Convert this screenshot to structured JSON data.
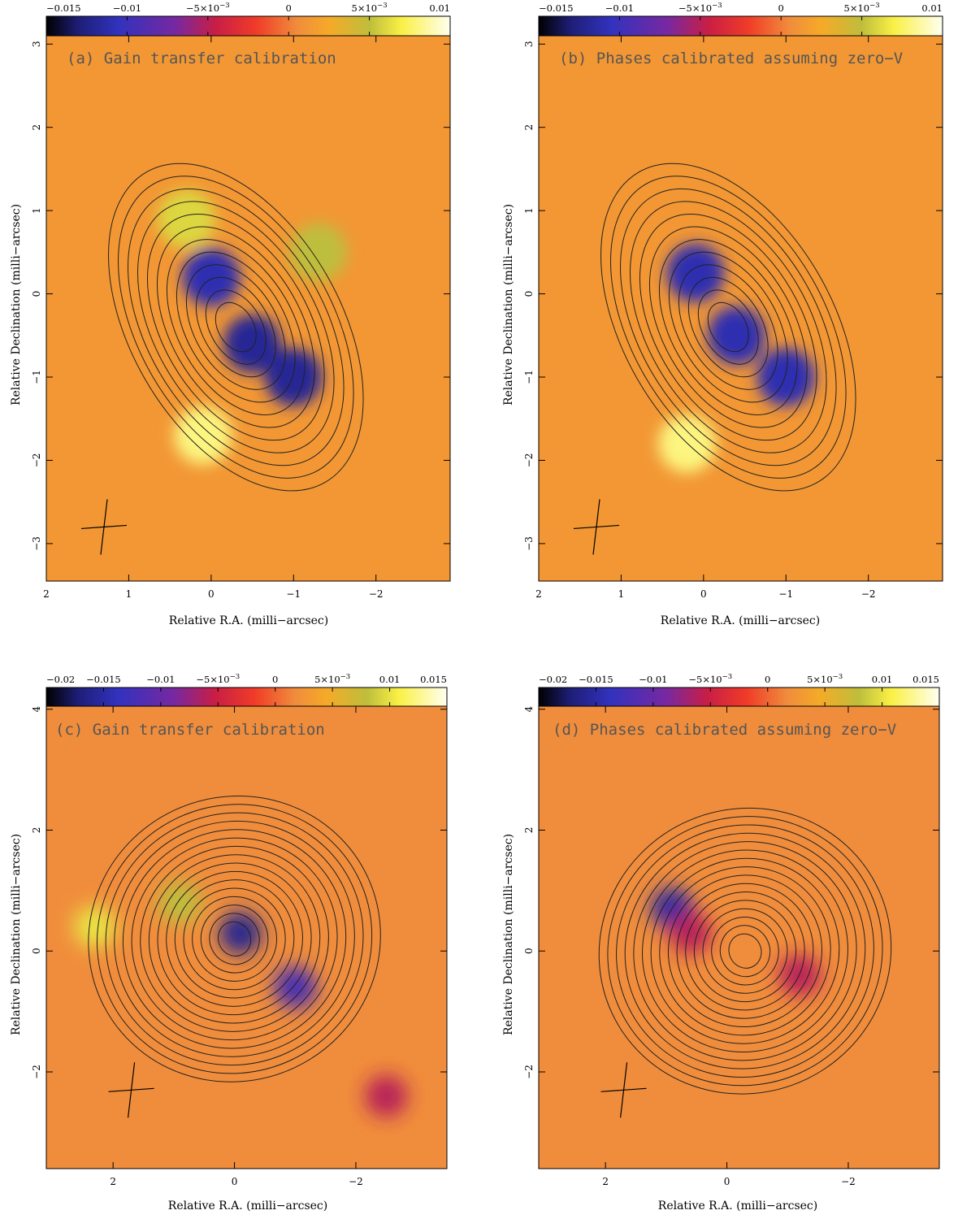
{
  "panels": [
    {
      "id": "a",
      "annotation": "(a) Gain transfer calibration",
      "colorbar": {
        "min": -0.015,
        "max": 0.01,
        "tick_values": [
          -0.015,
          -0.01,
          -0.005,
          0,
          0.005,
          0.01
        ],
        "tick_labels": [
          "−0.015",
          "−0.01",
          "−5×10",
          "0",
          "5×10",
          "0.01"
        ],
        "exponent_labels": [
          "",
          "",
          "−3",
          "",
          "−3",
          ""
        ]
      },
      "x_axis": {
        "label": "Relative R.A. (milli−arcsec)",
        "range": [
          2,
          -2.9
        ],
        "ticks": [
          2,
          1,
          0,
          -1,
          -2
        ],
        "tick_labels": [
          "2",
          "1",
          "0",
          "−1",
          "−2"
        ]
      },
      "y_axis": {
        "label": "Relative Declination (milli−arcsec)",
        "range": [
          -3.45,
          3.1
        ],
        "ticks": [
          3,
          2,
          1,
          0,
          -1,
          -2,
          -3
        ],
        "tick_labels": [
          "3",
          "2",
          "1",
          "0",
          "−1",
          "−2",
          "−3"
        ]
      },
      "beam": {
        "x": 1.3,
        "y": -2.8
      }
    },
    {
      "id": "b",
      "annotation": "(b) Phases calibrated assuming zero−V",
      "colorbar": {
        "min": -0.015,
        "max": 0.01,
        "tick_values": [
          -0.015,
          -0.01,
          -0.005,
          0,
          0.005,
          0.01
        ],
        "tick_labels": [
          "−0.015",
          "−0.01",
          "−5×10",
          "0",
          "5×10",
          "0.01"
        ],
        "exponent_labels": [
          "",
          "",
          "−3",
          "",
          "−3",
          ""
        ]
      },
      "x_axis": {
        "label": "Relative R.A. (milli−arcsec)",
        "range": [
          2,
          -2.9
        ],
        "ticks": [
          2,
          1,
          0,
          -1,
          -2
        ],
        "tick_labels": [
          "2",
          "1",
          "0",
          "−1",
          "−2"
        ]
      },
      "y_axis": {
        "label": "Relative Declination (milli−arcsec)",
        "range": [
          -3.45,
          3.1
        ],
        "ticks": [
          3,
          2,
          1,
          0,
          -1,
          -2,
          -3
        ],
        "tick_labels": [
          "3",
          "2",
          "1",
          "0",
          "−1",
          "−2",
          "−3"
        ]
      },
      "beam": {
        "x": 1.3,
        "y": -2.8
      }
    },
    {
      "id": "c",
      "annotation": "(c) Gain transfer calibration",
      "colorbar": {
        "min": -0.02,
        "max": 0.015,
        "tick_values": [
          -0.02,
          -0.015,
          -0.01,
          -0.005,
          0,
          0.005,
          0.01,
          0.015
        ],
        "tick_labels": [
          "−0.02",
          "−0.015",
          "−0.01",
          "−5×10",
          "0",
          "5×10",
          "0.01",
          "0.015"
        ],
        "exponent_labels": [
          "",
          "",
          "",
          "−3",
          "",
          "−3",
          "",
          ""
        ]
      },
      "x_axis": {
        "label": "Relative R.A. (milli−arcsec)",
        "range": [
          3.1,
          -3.5
        ],
        "ticks": [
          2,
          0,
          -2
        ],
        "tick_labels": [
          "2",
          "0",
          "−2"
        ]
      },
      "y_axis": {
        "label": "Relative Declination (milli−arcsec)",
        "range": [
          -3.6,
          4.05
        ],
        "ticks": [
          4,
          2,
          0,
          -2
        ],
        "tick_labels": [
          "4",
          "2",
          "0",
          "−2"
        ]
      },
      "beam": {
        "x": 1.7,
        "y": -2.3
      }
    },
    {
      "id": "d",
      "annotation": "(d) Phases calibrated assuming zero−V",
      "colorbar": {
        "min": -0.02,
        "max": 0.015,
        "tick_values": [
          -0.02,
          -0.015,
          -0.01,
          -0.005,
          0,
          0.005,
          0.01,
          0.015
        ],
        "tick_labels": [
          "−0.02",
          "−0.015",
          "−0.01",
          "−5×10",
          "0",
          "5×10",
          "0.01",
          "0.015"
        ],
        "exponent_labels": [
          "",
          "",
          "",
          "−3",
          "",
          "−3",
          "",
          ""
        ]
      },
      "x_axis": {
        "label": "Relative R.A. (milli−arcsec)",
        "range": [
          3.1,
          -3.5
        ],
        "ticks": [
          2,
          0,
          -2
        ],
        "tick_labels": [
          "2",
          "0",
          "−2"
        ]
      },
      "y_axis": {
        "label": "Relative Declination (milli−arcsec)",
        "range": [
          -3.6,
          4.05
        ],
        "ticks": [
          4,
          2,
          0,
          -2
        ],
        "tick_labels": [
          "4",
          "2",
          "0",
          "−2"
        ]
      },
      "beam": {
        "x": 1.7,
        "y": -2.3
      }
    }
  ],
  "chart_data": [
    {
      "type": "heatmap",
      "panel": "a",
      "title": "(a) Gain transfer calibration",
      "xlabel": "Relative R.A. (milli−arcsec)",
      "ylabel": "Relative Declination (milli−arcsec)",
      "xlim": [
        2,
        -2.9
      ],
      "ylim": [
        -3.45,
        3.1
      ],
      "colorbar_range": [
        -0.015,
        0.01
      ],
      "features": [
        {
          "x": 0.0,
          "y": 0.2,
          "value": -0.011
        },
        {
          "x": -0.5,
          "y": -0.6,
          "value": -0.012
        },
        {
          "x": -1.0,
          "y": -1.0,
          "value": -0.012
        },
        {
          "x": 0.3,
          "y": 0.9,
          "value": 0.006
        },
        {
          "x": 0.1,
          "y": -1.7,
          "value": 0.008
        },
        {
          "x": -1.3,
          "y": 0.5,
          "value": 0.005
        }
      ],
      "contours": [
        {
          "center": [
            -0.3,
            -0.4
          ],
          "levels": 12
        }
      ]
    },
    {
      "type": "heatmap",
      "panel": "b",
      "title": "(b) Phases calibrated assuming zero−V",
      "xlabel": "Relative R.A. (milli−arcsec)",
      "ylabel": "Relative Declination (milli−arcsec)",
      "xlim": [
        2,
        -2.9
      ],
      "ylim": [
        -3.45,
        3.1
      ],
      "colorbar_range": [
        -0.015,
        0.01
      ],
      "features": [
        {
          "x": 0.1,
          "y": 0.25,
          "value": -0.011
        },
        {
          "x": -0.4,
          "y": -0.5,
          "value": -0.011
        },
        {
          "x": -1.0,
          "y": -1.0,
          "value": -0.011
        },
        {
          "x": 0.2,
          "y": -1.8,
          "value": 0.008
        }
      ],
      "contours": [
        {
          "center": [
            -0.3,
            -0.4
          ],
          "levels": 12
        }
      ]
    },
    {
      "type": "heatmap",
      "panel": "c",
      "title": "(c) Gain transfer calibration",
      "xlabel": "Relative R.A. (milli−arcsec)",
      "ylabel": "Relative Declination (milli−arcsec)",
      "xlim": [
        3.1,
        -3.5
      ],
      "ylim": [
        -3.6,
        4.05
      ],
      "colorbar_range": [
        -0.02,
        0.015
      ],
      "features": [
        {
          "x": -0.1,
          "y": 0.3,
          "value": -0.016
        },
        {
          "x": -1.0,
          "y": -0.6,
          "value": -0.012
        },
        {
          "x": 0.9,
          "y": 0.8,
          "value": 0.008
        },
        {
          "x": 2.3,
          "y": 0.4,
          "value": 0.01
        },
        {
          "x": -2.5,
          "y": -2.4,
          "value": -0.006
        }
      ],
      "contours": [
        {
          "center": [
            0.0,
            0.2
          ],
          "levels": 16
        }
      ]
    },
    {
      "type": "heatmap",
      "panel": "d",
      "title": "(d) Phases calibrated assuming zero−V",
      "xlabel": "Relative R.A. (milli−arcsec)",
      "ylabel": "Relative Declination (milli−arcsec)",
      "xlim": [
        3.1,
        -3.5
      ],
      "ylim": [
        -3.6,
        4.05
      ],
      "colorbar_range": [
        -0.02,
        0.015
      ],
      "features": [
        {
          "x": 0.9,
          "y": 0.7,
          "value": -0.015
        },
        {
          "x": 0.6,
          "y": 0.3,
          "value": -0.006
        },
        {
          "x": -1.2,
          "y": -0.4,
          "value": -0.006
        }
      ],
      "contours": [
        {
          "center": [
            -0.3,
            0.0
          ],
          "levels": 16
        }
      ]
    }
  ]
}
